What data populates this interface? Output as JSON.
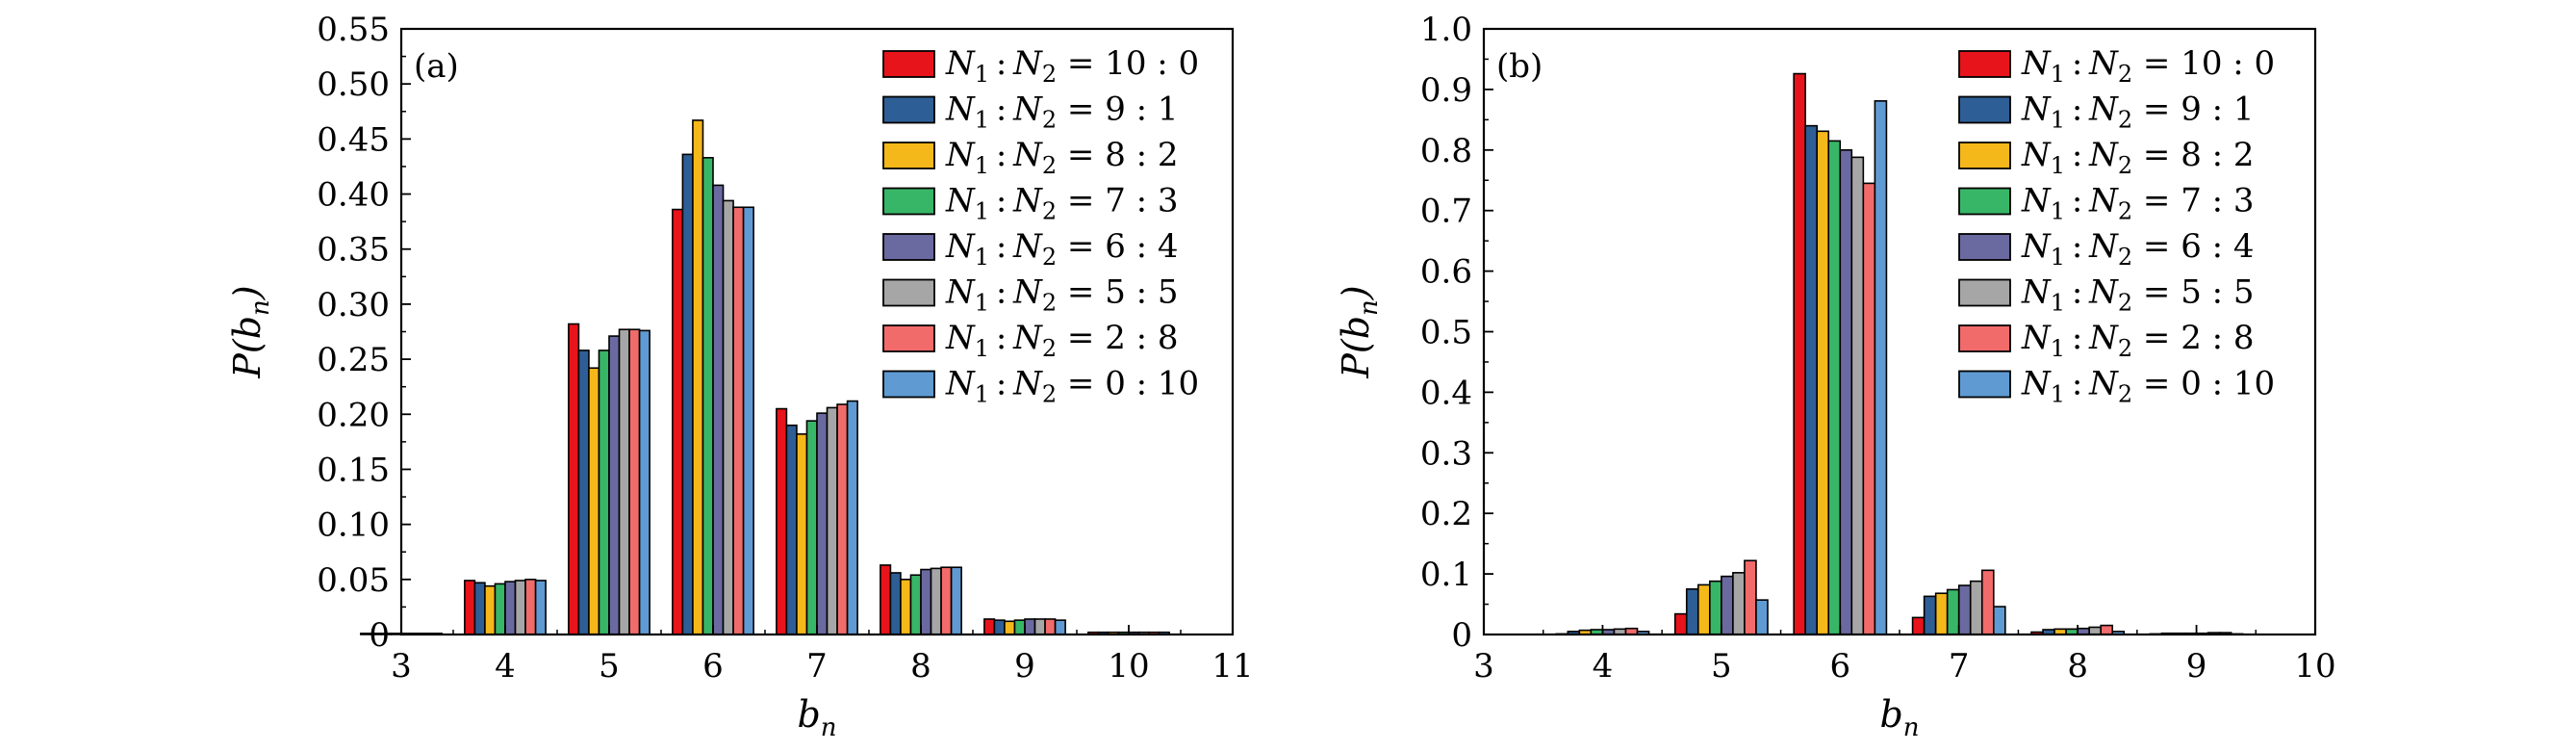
{
  "figure": {
    "legend_entries": [
      {
        "label": "N1 : N2 = 10 : 0",
        "color": "#e8141b"
      },
      {
        "label": "N1 : N2 = 9 : 1",
        "color": "#2e5e96"
      },
      {
        "label": "N1 : N2 = 8 : 2",
        "color": "#f5b81b"
      },
      {
        "label": "N1 : N2 = 7 : 3",
        "color": "#38b667"
      },
      {
        "label": "N1 : N2 = 6 : 4",
        "color": "#6a6aa0"
      },
      {
        "label": "N1 : N2 = 5 : 5",
        "color": "#a6a6a6"
      },
      {
        "label": "N1 : N2 = 2 : 8",
        "color": "#f26b6b"
      },
      {
        "label": "N1 : N2 = 0 : 10",
        "color": "#5f9bd2"
      }
    ]
  },
  "chart_data": [
    {
      "type": "bar",
      "panel_label": "(a)",
      "xlabel": "b_n",
      "ylabel": "P(b_n)",
      "xlim": [
        3,
        11
      ],
      "ylim": [
        0,
        0.55
      ],
      "xticks": [
        "3",
        "4",
        "5",
        "6",
        "7",
        "8",
        "9",
        "10",
        "11"
      ],
      "yticks": [
        "0",
        "0.05",
        "0.10",
        "0.15",
        "0.20",
        "0.25",
        "0.30",
        "0.35",
        "0.40",
        "0.45",
        "0.50",
        "0.55"
      ],
      "categories": [
        3,
        4,
        5,
        6,
        7,
        8,
        9,
        10
      ],
      "legend": "top-right",
      "grid": false,
      "series": [
        {
          "name": "N1 : N2 = 10 : 0",
          "color": "#e8141b",
          "values": [
            0.001,
            0.049,
            0.282,
            0.386,
            0.205,
            0.063,
            0.014,
            0.002
          ]
        },
        {
          "name": "N1 : N2 = 9 : 1",
          "color": "#2e5e96",
          "values": [
            0.001,
            0.047,
            0.258,
            0.436,
            0.19,
            0.056,
            0.013,
            0.002
          ]
        },
        {
          "name": "N1 : N2 = 8 : 2",
          "color": "#f5b81b",
          "values": [
            0.001,
            0.044,
            0.242,
            0.467,
            0.182,
            0.05,
            0.012,
            0.002
          ]
        },
        {
          "name": "N1 : N2 = 7 : 3",
          "color": "#38b667",
          "values": [
            0.001,
            0.046,
            0.258,
            0.433,
            0.194,
            0.054,
            0.013,
            0.002
          ]
        },
        {
          "name": "N1 : N2 = 6 : 4",
          "color": "#6a6aa0",
          "values": [
            0.001,
            0.048,
            0.271,
            0.408,
            0.201,
            0.059,
            0.014,
            0.002
          ]
        },
        {
          "name": "N1 : N2 = 5 : 5",
          "color": "#a6a6a6",
          "values": [
            0.001,
            0.049,
            0.277,
            0.394,
            0.206,
            0.06,
            0.014,
            0.002
          ]
        },
        {
          "name": "N1 : N2 = 2 : 8",
          "color": "#f26b6b",
          "values": [
            0.001,
            0.05,
            0.277,
            0.388,
            0.209,
            0.061,
            0.014,
            0.002
          ]
        },
        {
          "name": "N1 : N2 = 0 : 10",
          "color": "#5f9bd2",
          "values": [
            0.001,
            0.049,
            0.276,
            0.388,
            0.212,
            0.061,
            0.013,
            0.002
          ]
        }
      ]
    },
    {
      "type": "bar",
      "panel_label": "(b)",
      "xlabel": "b_n",
      "ylabel": "P(b_n)",
      "xlim": [
        3,
        10
      ],
      "ylim": [
        0,
        1.0
      ],
      "xticks": [
        "3",
        "4",
        "5",
        "6",
        "7",
        "8",
        "9",
        "10"
      ],
      "yticks": [
        "0",
        "0.1",
        "0.2",
        "0.3",
        "0.4",
        "0.5",
        "0.6",
        "0.7",
        "0.8",
        "0.9",
        "1.0"
      ],
      "categories": [
        4,
        5,
        6,
        7,
        8,
        9
      ],
      "legend": "top-right",
      "grid": false,
      "series": [
        {
          "name": "N1 : N2 = 10 : 0",
          "color": "#e8141b",
          "values": [
            0.001,
            0.034,
            0.926,
            0.028,
            0.004,
            0.001
          ]
        },
        {
          "name": "N1 : N2 = 9 : 1",
          "color": "#2e5e96",
          "values": [
            0.005,
            0.075,
            0.84,
            0.063,
            0.008,
            0.002
          ]
        },
        {
          "name": "N1 : N2 = 8 : 2",
          "color": "#f5b81b",
          "values": [
            0.007,
            0.082,
            0.831,
            0.068,
            0.009,
            0.002
          ]
        },
        {
          "name": "N1 : N2 = 7 : 3",
          "color": "#38b667",
          "values": [
            0.008,
            0.088,
            0.815,
            0.074,
            0.009,
            0.002
          ]
        },
        {
          "name": "N1 : N2 = 6 : 4",
          "color": "#6a6aa0",
          "values": [
            0.008,
            0.096,
            0.8,
            0.081,
            0.01,
            0.002
          ]
        },
        {
          "name": "N1 : N2 = 5 : 5",
          "color": "#a6a6a6",
          "values": [
            0.009,
            0.102,
            0.788,
            0.088,
            0.012,
            0.003
          ]
        },
        {
          "name": "N1 : N2 = 2 : 8",
          "color": "#f26b6b",
          "values": [
            0.01,
            0.122,
            0.745,
            0.106,
            0.015,
            0.003
          ]
        },
        {
          "name": "N1 : N2 = 0 : 10",
          "color": "#5f9bd2",
          "values": [
            0.005,
            0.057,
            0.881,
            0.046,
            0.005,
            0.001
          ]
        }
      ]
    }
  ]
}
